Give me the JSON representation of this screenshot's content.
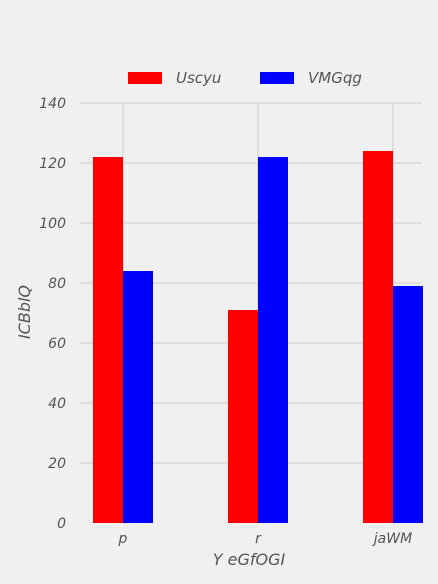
{
  "chart_data": {
    "type": "bar",
    "title": "",
    "xlabel": "Y eGfOGI",
    "ylabel": "ICBblQ",
    "categories": [
      "p",
      "r",
      "jaWM"
    ],
    "series": [
      {
        "name": "Uscyu",
        "values": [
          122,
          71,
          124
        ],
        "color": "#ff0000"
      },
      {
        "name": "VMGqg",
        "values": [
          84,
          122,
          79
        ],
        "color": "#0000ff"
      }
    ],
    "ylim": [
      0,
      140
    ],
    "yticks": [
      0,
      20,
      40,
      60,
      80,
      100,
      120,
      140
    ],
    "grid": true,
    "legend_position": "top-center",
    "background": "#f0f0f0"
  }
}
